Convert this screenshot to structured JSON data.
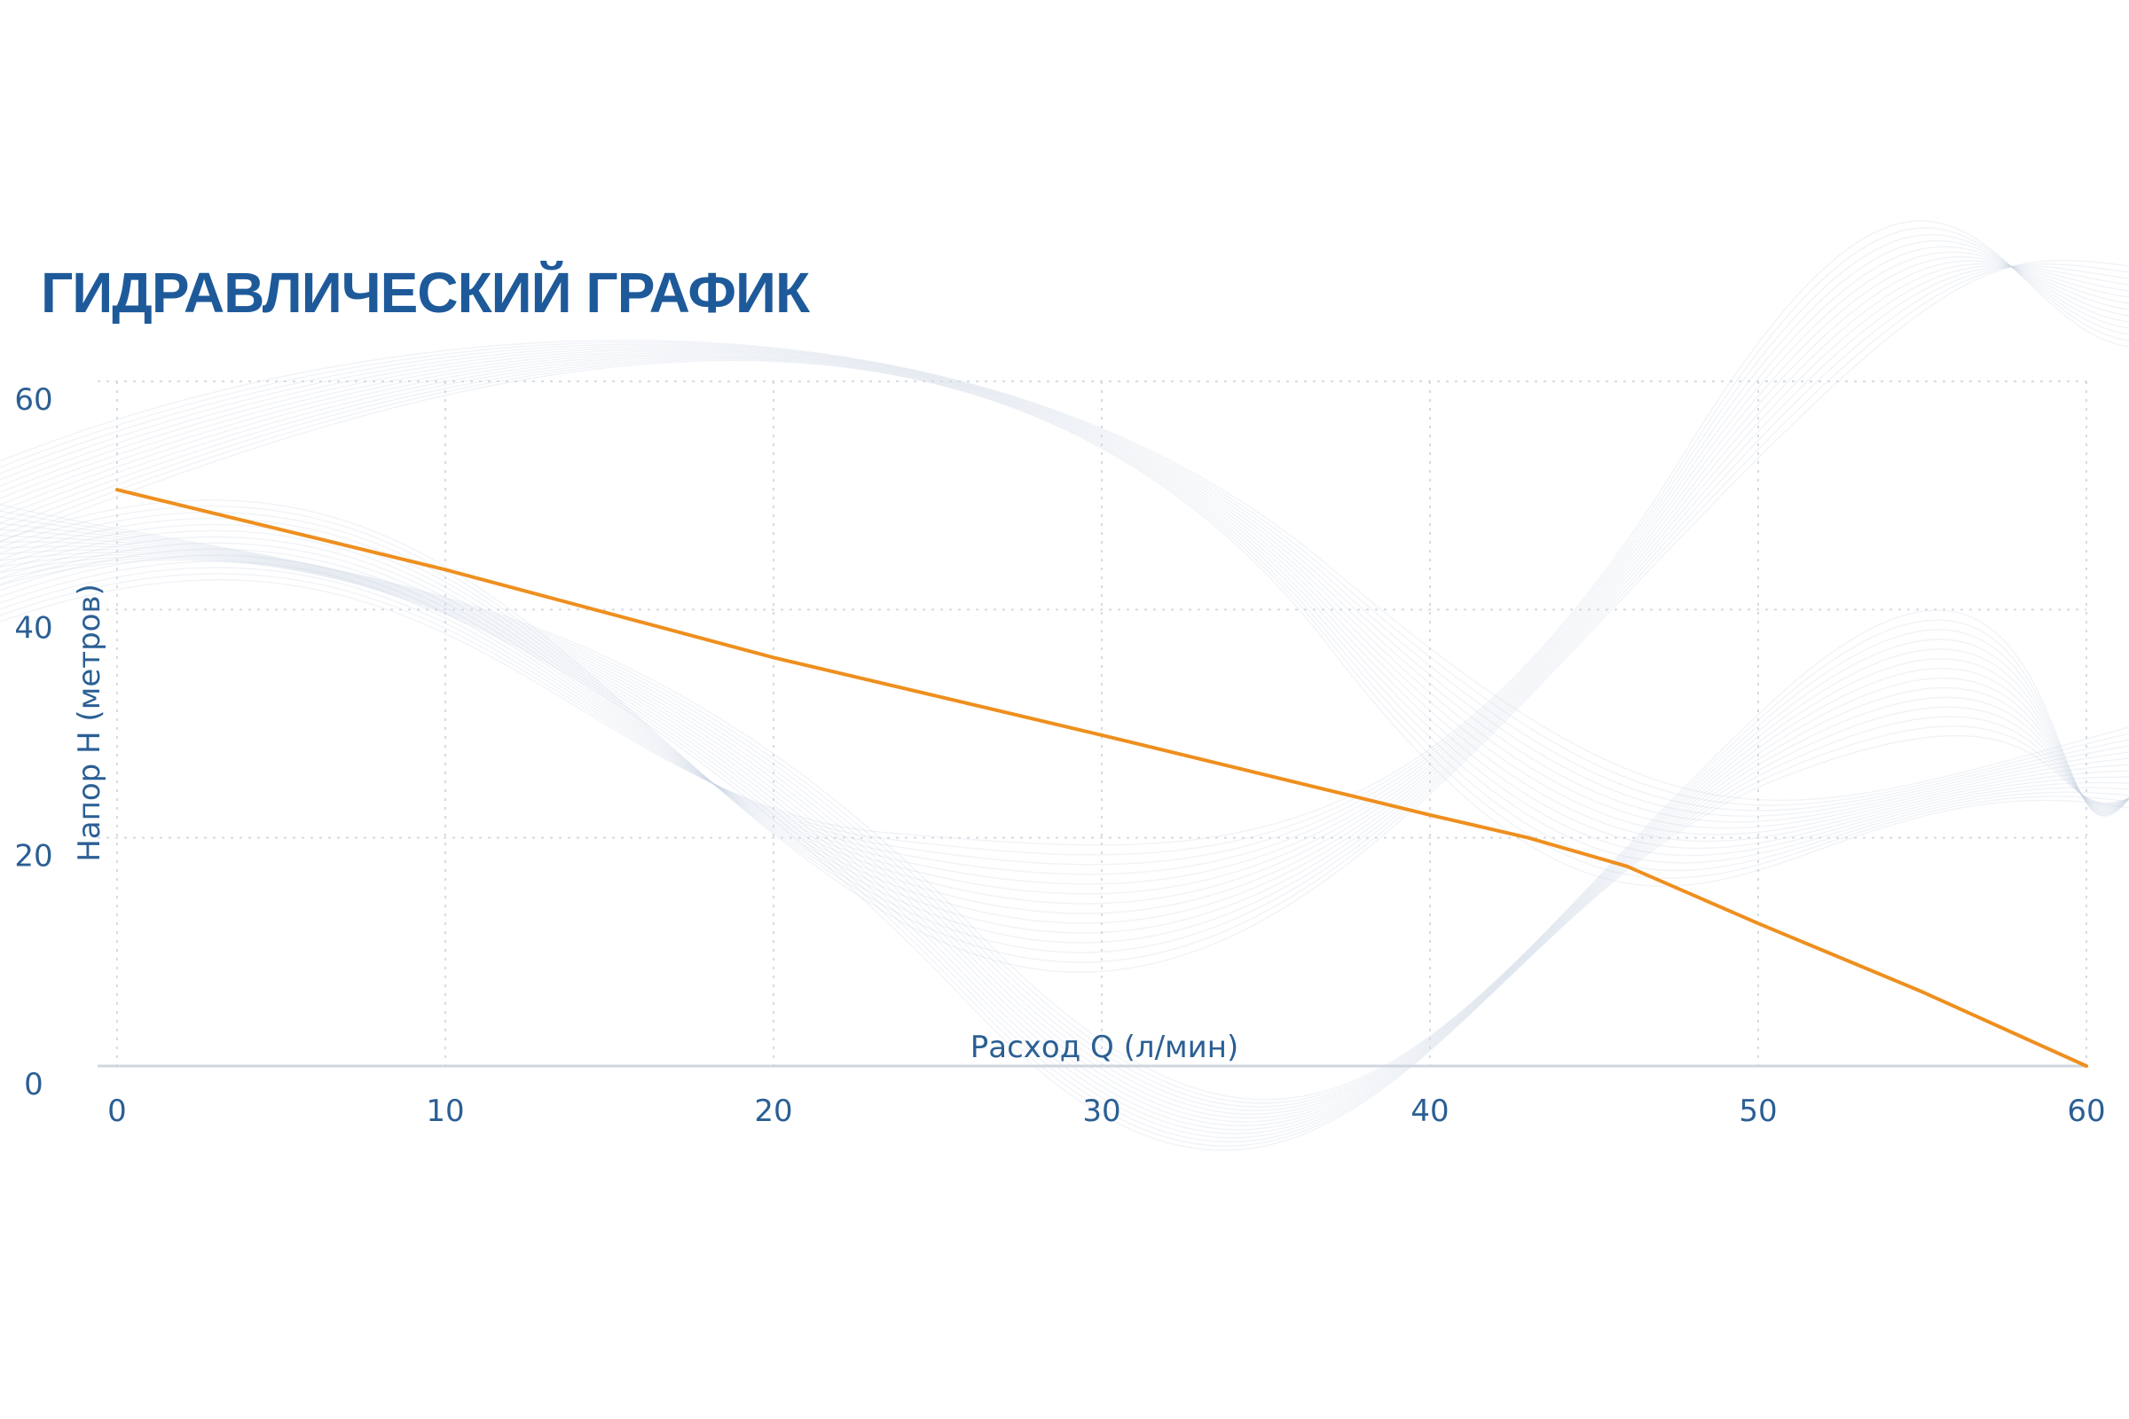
{
  "chart_data": {
    "type": "line",
    "title": "ГИДРАВЛИЧЕСКИЙ ГРАФИК",
    "xlabel": "Расход Q (л/мин)",
    "ylabel": "Напор Н (метров)",
    "xlim": [
      0,
      60
    ],
    "ylim": [
      0,
      60
    ],
    "x_ticks": [
      0,
      10,
      20,
      30,
      40,
      50,
      60
    ],
    "y_ticks": [
      0,
      20,
      40,
      60
    ],
    "grid": true,
    "legend": "none",
    "series": [
      {
        "color": "#ee8f1e",
        "x": [
          0,
          10,
          20,
          30,
          40,
          43,
          46,
          50,
          55,
          60
        ],
        "y": [
          50.5,
          43.5,
          35.8,
          29,
          22,
          20,
          17.5,
          12.5,
          6.5,
          0
        ]
      }
    ]
  }
}
